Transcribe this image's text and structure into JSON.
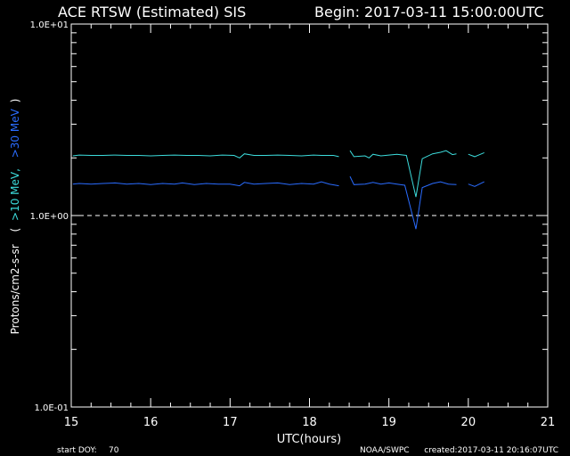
{
  "header": {
    "title": "ACE RTSW (Estimated) SIS",
    "begin": "Begin: 2017-03-11 15:00:00UTC"
  },
  "ylabel": {
    "prefix": "Protons/cm2-s-sr",
    "paren_open": "(",
    "series1": ">10 MeV,",
    "series2": ">30 MeV",
    "paren_close": ")"
  },
  "footer": {
    "start_doy": "start DOY:",
    "doy_value": "70",
    "source": "NOAA/SWPC",
    "created": "created:2017-03-11 20:16:07UTC"
  },
  "colors": {
    "background": "#000000",
    "axis": "#ffffff",
    "series1": "#3cdcdc",
    "series2": "#2a6cff"
  },
  "chart_data": {
    "type": "line",
    "title": "ACE RTSW (Estimated) SIS",
    "xlabel": "UTC(hours)",
    "ylabel": "Protons/cm2-s-sr",
    "x_ticks": [
      15,
      16,
      17,
      18,
      19,
      20,
      21
    ],
    "x_tick_labels": [
      "15",
      "16",
      "17",
      "18",
      "19",
      "20",
      "21"
    ],
    "xlim": [
      15,
      21
    ],
    "y_scale": "log",
    "ylim": [
      0.1,
      10
    ],
    "y_ticks": [
      0.1,
      1,
      10
    ],
    "y_tick_labels": [
      "1.0E-01",
      "1.0E+00",
      "1.0E+01"
    ],
    "reference_line": {
      "y": 1.0,
      "style": "dashed"
    },
    "series": [
      {
        "name": ">10 MeV",
        "color": "#3cdcdc",
        "segments": [
          [
            [
              15.02,
              2.05
            ],
            [
              15.1,
              2.07
            ],
            [
              15.25,
              2.06
            ],
            [
              15.4,
              2.06
            ],
            [
              15.55,
              2.07
            ],
            [
              15.7,
              2.06
            ],
            [
              15.85,
              2.06
            ],
            [
              16.0,
              2.05
            ],
            [
              16.15,
              2.06
            ],
            [
              16.3,
              2.07
            ],
            [
              16.45,
              2.06
            ],
            [
              16.6,
              2.06
            ],
            [
              16.75,
              2.05
            ],
            [
              16.9,
              2.07
            ],
            [
              17.05,
              2.06
            ],
            [
              17.12,
              2.0
            ],
            [
              17.18,
              2.1
            ],
            [
              17.3,
              2.06
            ],
            [
              17.45,
              2.06
            ],
            [
              17.6,
              2.07
            ],
            [
              17.75,
              2.06
            ],
            [
              17.9,
              2.05
            ],
            [
              18.05,
              2.07
            ],
            [
              18.15,
              2.06
            ],
            [
              18.3,
              2.06
            ],
            [
              18.37,
              2.03
            ]
          ],
          [
            [
              18.51,
              2.18
            ],
            [
              18.56,
              2.03
            ],
            [
              18.7,
              2.05
            ],
            [
              18.75,
              2.0
            ],
            [
              18.8,
              2.09
            ],
            [
              18.9,
              2.05
            ],
            [
              19.0,
              2.07
            ],
            [
              19.1,
              2.09
            ],
            [
              19.22,
              2.06
            ],
            [
              19.34,
              1.25
            ],
            [
              19.42,
              1.98
            ],
            [
              19.55,
              2.1
            ],
            [
              19.65,
              2.14
            ],
            [
              19.72,
              2.18
            ],
            [
              19.8,
              2.08
            ],
            [
              19.85,
              2.1
            ]
          ],
          [
            [
              20.0,
              2.09
            ],
            [
              20.08,
              2.03
            ],
            [
              20.2,
              2.13
            ]
          ]
        ]
      },
      {
        "name": ">30 MeV",
        "color": "#2a6cff",
        "segments": [
          [
            [
              15.02,
              1.46
            ],
            [
              15.1,
              1.47
            ],
            [
              15.25,
              1.46
            ],
            [
              15.4,
              1.47
            ],
            [
              15.55,
              1.48
            ],
            [
              15.7,
              1.46
            ],
            [
              15.85,
              1.47
            ],
            [
              16.0,
              1.45
            ],
            [
              16.15,
              1.47
            ],
            [
              16.3,
              1.46
            ],
            [
              16.4,
              1.48
            ],
            [
              16.55,
              1.45
            ],
            [
              16.7,
              1.47
            ],
            [
              16.85,
              1.46
            ],
            [
              17.0,
              1.46
            ],
            [
              17.12,
              1.43
            ],
            [
              17.18,
              1.49
            ],
            [
              17.3,
              1.46
            ],
            [
              17.45,
              1.47
            ],
            [
              17.6,
              1.48
            ],
            [
              17.75,
              1.45
            ],
            [
              17.9,
              1.47
            ],
            [
              18.05,
              1.46
            ],
            [
              18.15,
              1.5
            ],
            [
              18.25,
              1.46
            ],
            [
              18.37,
              1.43
            ]
          ],
          [
            [
              18.51,
              1.6
            ],
            [
              18.56,
              1.45
            ],
            [
              18.7,
              1.46
            ],
            [
              18.8,
              1.49
            ],
            [
              18.9,
              1.46
            ],
            [
              19.0,
              1.48
            ],
            [
              19.1,
              1.46
            ],
            [
              19.2,
              1.44
            ],
            [
              19.34,
              0.85
            ],
            [
              19.42,
              1.4
            ],
            [
              19.55,
              1.47
            ],
            [
              19.65,
              1.5
            ],
            [
              19.75,
              1.46
            ],
            [
              19.85,
              1.45
            ]
          ],
          [
            [
              20.0,
              1.46
            ],
            [
              20.08,
              1.42
            ],
            [
              20.2,
              1.5
            ]
          ]
        ]
      }
    ]
  }
}
